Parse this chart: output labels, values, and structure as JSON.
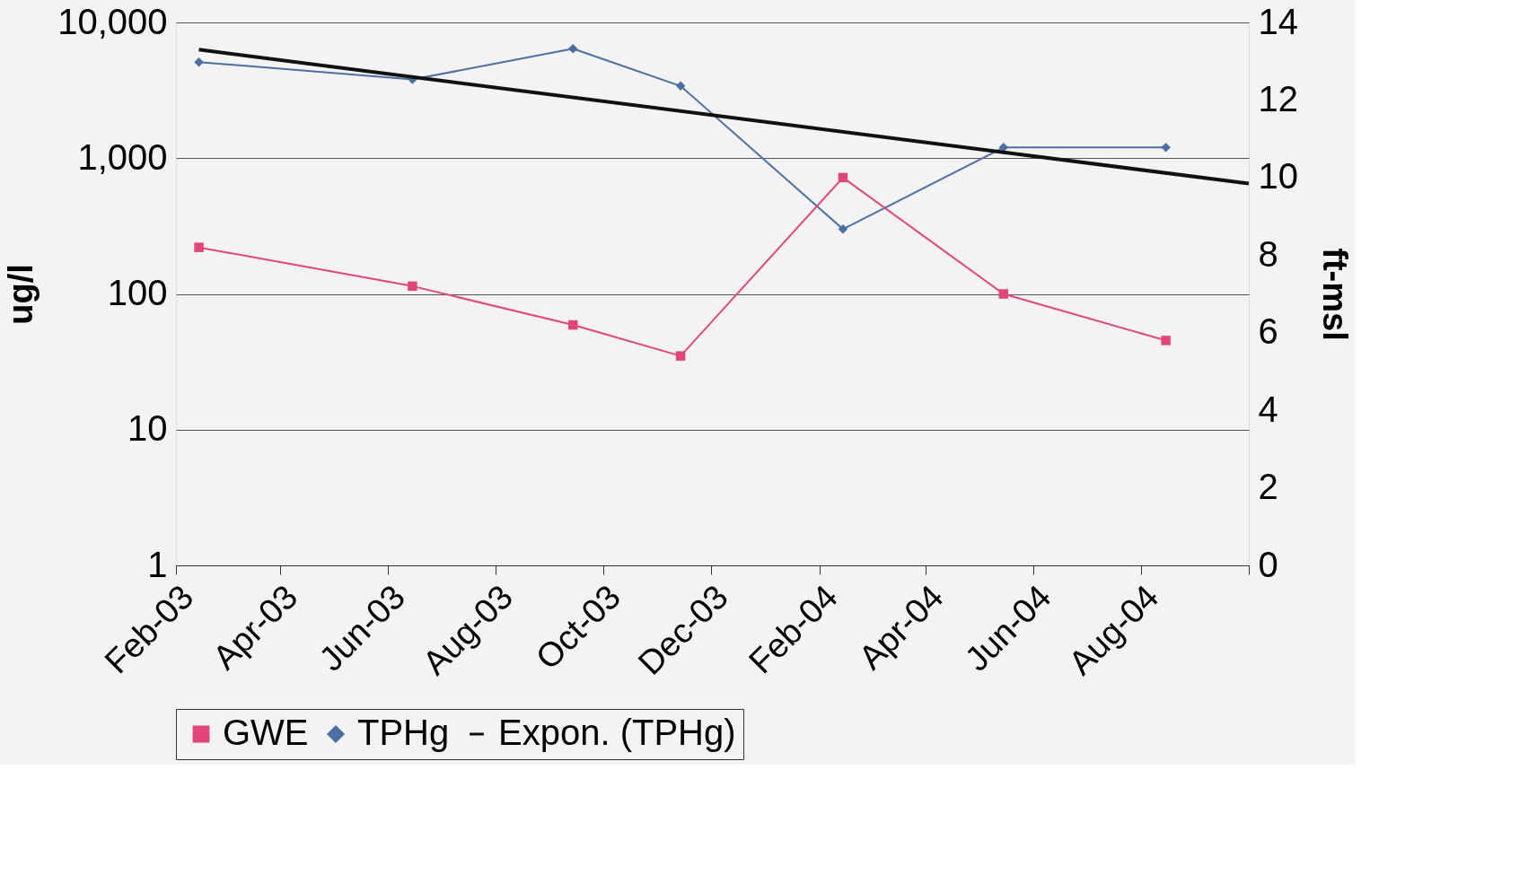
{
  "chart_data": {
    "type": "line",
    "ylabel": "ug/l",
    "y2label": "ft-msl",
    "x": [
      "2003-02-14",
      "2003-06-15",
      "2003-09-14",
      "2003-11-14",
      "2004-02-14",
      "2004-05-15",
      "2004-08-15"
    ],
    "series": [
      {
        "name": "GWE",
        "color": "#e0457b",
        "axis": "y2",
        "marker": "square",
        "values": [
          8.2,
          7.2,
          6.2,
          5.4,
          10.0,
          7.0,
          5.8
        ]
      },
      {
        "name": "TPHg",
        "color": "#4a6fa5",
        "marker": "diamond",
        "values": [
          5100,
          3800,
          6400,
          3400,
          300,
          1200,
          1200
        ]
      },
      {
        "name": "Expon. (TPHg)",
        "type": "line",
        "color": "#111111",
        "marker": "none",
        "x": [
          "2003-02-14",
          "2004-10-01"
        ],
        "values": [
          6300,
          650
        ]
      }
    ],
    "log": "y",
    "ylim": [
      1,
      10000
    ],
    "yticks": [
      1,
      10,
      100,
      {
        "value": 1000,
        "label": "1,000"
      },
      {
        "value": 10000,
        "label": "10,000"
      }
    ],
    "y2lim": [
      0,
      14
    ],
    "y2ticks": [
      0,
      2,
      4,
      6,
      8,
      10,
      12,
      14
    ],
    "xlim": [
      "2003-02-01",
      "2004-10-01"
    ],
    "xticks": [
      {
        "value": "2003-02-01",
        "label": "Feb-03"
      },
      {
        "value": "2003-04-01",
        "label": "Apr-03"
      },
      {
        "value": "2003-06-01",
        "label": "Jun-03"
      },
      {
        "value": "2003-08-01",
        "label": "Aug-03"
      },
      {
        "value": "2003-10-01",
        "label": "Oct-03"
      },
      {
        "value": "2003-12-01",
        "label": "Dec-03"
      },
      {
        "value": "2004-02-01",
        "label": "Feb-04"
      },
      {
        "value": "2004-04-01",
        "label": "Apr-04"
      },
      {
        "value": "2004-06-01",
        "label": "Jun-04"
      },
      {
        "value": "2004-08-01",
        "label": "Aug-04"
      },
      {
        "value": "2004-10-01",
        "label": null
      }
    ],
    "grid": "y",
    "legend": "bottom"
  }
}
